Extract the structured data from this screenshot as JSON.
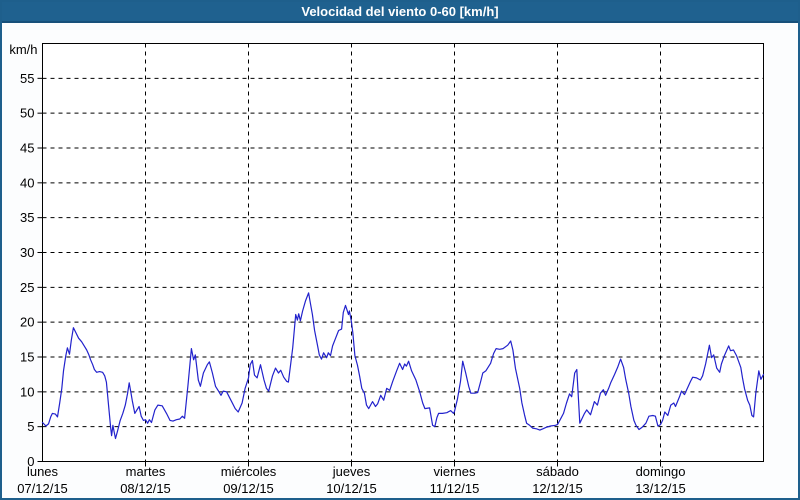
{
  "header": {
    "title": "Velocidad del viento 0-60 [km/h]"
  },
  "colors": {
    "titlebar_bg": "#1F618F",
    "titlebar_border": "#17507A",
    "page_border": "#1E5F8C",
    "page_bg": "#FCFDFE",
    "plot_bg": "#FFFFFF",
    "frame": "#000000",
    "grid": "#000000",
    "text": "#000000",
    "line": "#2222CC"
  },
  "chart_data": {
    "type": "line",
    "title": "Velocidad del viento 0-60 [km/h]",
    "ylabel": "km/h",
    "xlabel": "",
    "grid": {
      "style": "dashed",
      "color": "#000000"
    },
    "legend": "none",
    "y_axis": {
      "min": 0,
      "max": 60,
      "tick_step": 5,
      "tick_label_values": [
        0,
        5,
        10,
        15,
        20,
        25,
        30,
        35,
        40,
        45,
        50,
        55
      ],
      "gridline_values": [
        5,
        10,
        15,
        20,
        25,
        30,
        35,
        40,
        45,
        50,
        55
      ],
      "unit_label": "km/h"
    },
    "x_axis": {
      "total_hours": 168,
      "day_span_hours": 24,
      "day_boundary_hours": [
        24,
        48,
        72,
        96,
        120,
        144
      ],
      "days": [
        {
          "name": "lunes",
          "date": "07/12/15"
        },
        {
          "name": "martes",
          "date": "08/12/15"
        },
        {
          "name": "miércoles",
          "date": "09/12/15"
        },
        {
          "name": "jueves",
          "date": "10/12/15"
        },
        {
          "name": "viernes",
          "date": "11/12/15"
        },
        {
          "name": "sábado",
          "date": "12/12/15"
        },
        {
          "name": "domingo",
          "date": "13/12/15"
        }
      ]
    },
    "series": [
      {
        "name": "Velocidad del viento",
        "color": "#2222CC",
        "units": "km/h",
        "points": [
          [
            0,
            5.6
          ],
          [
            0.8,
            5.1
          ],
          [
            1.4,
            5.4
          ],
          [
            1.9,
            6.4
          ],
          [
            2.3,
            6.9
          ],
          [
            3,
            6.8
          ],
          [
            3.5,
            6.4
          ],
          [
            4,
            8.4
          ],
          [
            4.5,
            10.5
          ],
          [
            4.9,
            13
          ],
          [
            5.4,
            15.1
          ],
          [
            5.8,
            16.3
          ],
          [
            6.3,
            15.4
          ],
          [
            6.7,
            17.4
          ],
          [
            7.2,
            19.2
          ],
          [
            7.7,
            18.6
          ],
          [
            8.4,
            17.7
          ],
          [
            9.1,
            17.2
          ],
          [
            9.8,
            16.5
          ],
          [
            10.3,
            16
          ],
          [
            10.8,
            15.3
          ],
          [
            11.2,
            14.6
          ],
          [
            11.7,
            13.9
          ],
          [
            12.1,
            13.2
          ],
          [
            12.6,
            12.8
          ],
          [
            13.3,
            12.9
          ],
          [
            14,
            12.8
          ],
          [
            14.5,
            12.3
          ],
          [
            14.9,
            11.4
          ],
          [
            15.4,
            8
          ],
          [
            15.9,
            4.8
          ],
          [
            16.1,
            3.7
          ],
          [
            16.4,
            5.2
          ],
          [
            16.7,
            4.2
          ],
          [
            17,
            3.3
          ],
          [
            17.5,
            4.4
          ],
          [
            18.1,
            5.9
          ],
          [
            18.7,
            6.9
          ],
          [
            19.3,
            8.1
          ],
          [
            19.8,
            9.7
          ],
          [
            20.2,
            11.3
          ],
          [
            20.6,
            9.9
          ],
          [
            20.9,
            8.8
          ],
          [
            21.5,
            6.9
          ],
          [
            22.1,
            7.5
          ],
          [
            22.5,
            7.9
          ],
          [
            23,
            6.5
          ],
          [
            23.5,
            5.9
          ],
          [
            24,
            6
          ],
          [
            24.5,
            5.5
          ],
          [
            24.9,
            6
          ],
          [
            25.4,
            5.6
          ],
          [
            26.2,
            7.4
          ],
          [
            26.9,
            8.1
          ],
          [
            27.9,
            8
          ],
          [
            28.9,
            6.9
          ],
          [
            29.7,
            5.9
          ],
          [
            30.4,
            5.8
          ],
          [
            31.2,
            6
          ],
          [
            32,
            6.1
          ],
          [
            32.6,
            6.5
          ],
          [
            33.1,
            6.2
          ],
          [
            33.9,
            11
          ],
          [
            34.7,
            16.2
          ],
          [
            35.2,
            14.6
          ],
          [
            35.6,
            15.3
          ],
          [
            36.3,
            11.7
          ],
          [
            36.8,
            10.8
          ],
          [
            37.5,
            12.7
          ],
          [
            38.4,
            13.9
          ],
          [
            38.9,
            14.3
          ],
          [
            39.6,
            12.7
          ],
          [
            40.3,
            10.8
          ],
          [
            41,
            10.1
          ],
          [
            41.6,
            9.5
          ],
          [
            42.1,
            10.1
          ],
          [
            42.9,
            10
          ],
          [
            43.9,
            8.8
          ],
          [
            44.9,
            7.6
          ],
          [
            45.6,
            7.1
          ],
          [
            46.5,
            8.4
          ],
          [
            47.2,
            10.5
          ],
          [
            48,
            12
          ],
          [
            48.4,
            13.9
          ],
          [
            48.9,
            14.5
          ],
          [
            49.4,
            12.4
          ],
          [
            50,
            12
          ],
          [
            50.8,
            13.9
          ],
          [
            51.6,
            11.7
          ],
          [
            52.2,
            10.5
          ],
          [
            52.7,
            10.1
          ],
          [
            53.6,
            12.3
          ],
          [
            54.3,
            13.4
          ],
          [
            55,
            12.7
          ],
          [
            55.5,
            13.1
          ],
          [
            56.2,
            12.1
          ],
          [
            56.9,
            11.5
          ],
          [
            57.3,
            11.4
          ],
          [
            57.8,
            13.9
          ],
          [
            58.3,
            16.3
          ],
          [
            59,
            21.1
          ],
          [
            59.4,
            20.3
          ],
          [
            59.7,
            21.2
          ],
          [
            60.1,
            20.2
          ],
          [
            60.6,
            21.6
          ],
          [
            61.3,
            23.1
          ],
          [
            62,
            24.2
          ],
          [
            62.4,
            22.8
          ],
          [
            62.9,
            21.1
          ],
          [
            63.4,
            18.8
          ],
          [
            64.1,
            16.6
          ],
          [
            64.5,
            15.3
          ],
          [
            65,
            14.7
          ],
          [
            65.5,
            15.6
          ],
          [
            66.2,
            14.9
          ],
          [
            66.6,
            15.6
          ],
          [
            67.1,
            15.2
          ],
          [
            67.6,
            16.6
          ],
          [
            68.3,
            17.7
          ],
          [
            69,
            18.8
          ],
          [
            69.7,
            19
          ],
          [
            70.1,
            21.4
          ],
          [
            70.6,
            22.4
          ],
          [
            71.3,
            21.1
          ],
          [
            71.5,
            21.6
          ],
          [
            72,
            20
          ],
          [
            72.3,
            18.5
          ],
          [
            72.8,
            15.2
          ],
          [
            73.4,
            13.8
          ],
          [
            73.9,
            12.2
          ],
          [
            74.4,
            10.5
          ],
          [
            75,
            9.8
          ],
          [
            75.5,
            8.1
          ],
          [
            76,
            7.6
          ],
          [
            76.9,
            8.6
          ],
          [
            77.6,
            7.9
          ],
          [
            78.1,
            8.3
          ],
          [
            78.8,
            9.5
          ],
          [
            79.5,
            8.8
          ],
          [
            80.2,
            10.5
          ],
          [
            80.9,
            10.2
          ],
          [
            81.6,
            11.5
          ],
          [
            82.5,
            13
          ],
          [
            83.2,
            14.1
          ],
          [
            83.9,
            13.2
          ],
          [
            84.4,
            14
          ],
          [
            84.8,
            13.7
          ],
          [
            85.3,
            14.4
          ],
          [
            86,
            13
          ],
          [
            87,
            11.7
          ],
          [
            87.9,
            10
          ],
          [
            88.6,
            8.4
          ],
          [
            89.1,
            7.6
          ],
          [
            90.2,
            7.7
          ],
          [
            90.9,
            5.2
          ],
          [
            91.4,
            5
          ],
          [
            91.9,
            6.3
          ],
          [
            92.3,
            6.9
          ],
          [
            93.2,
            6.9
          ],
          [
            94.2,
            7
          ],
          [
            95.1,
            7.3
          ],
          [
            95.8,
            6.9
          ],
          [
            96,
            7.2
          ],
          [
            96.7,
            9
          ],
          [
            97.4,
            11.5
          ],
          [
            97.9,
            14.4
          ],
          [
            98.6,
            12.7
          ],
          [
            99.3,
            10.8
          ],
          [
            99.8,
            9.8
          ],
          [
            100.7,
            9.8
          ],
          [
            101.4,
            9.9
          ],
          [
            102.1,
            11.5
          ],
          [
            102.6,
            12.7
          ],
          [
            103.3,
            13
          ],
          [
            104.4,
            14.1
          ],
          [
            105.1,
            15.5
          ],
          [
            105.7,
            16.2
          ],
          [
            106.5,
            16.1
          ],
          [
            107.3,
            16.2
          ],
          [
            108.4,
            16.7
          ],
          [
            109.1,
            17.3
          ],
          [
            109.6,
            16
          ],
          [
            110.2,
            13.4
          ],
          [
            111.2,
            10.5
          ],
          [
            111.7,
            8.4
          ],
          [
            112.3,
            6.7
          ],
          [
            112.8,
            5.5
          ],
          [
            113.5,
            5.2
          ],
          [
            114.2,
            4.8
          ],
          [
            115.1,
            4.7
          ],
          [
            115.9,
            4.5
          ],
          [
            116.6,
            4.7
          ],
          [
            117.3,
            4.9
          ],
          [
            118.4,
            5.1
          ],
          [
            119.5,
            5.2
          ],
          [
            120,
            5.3
          ],
          [
            120.8,
            6.2
          ],
          [
            121.4,
            6.9
          ],
          [
            122.1,
            8.4
          ],
          [
            122.8,
            9.7
          ],
          [
            123.3,
            9.3
          ],
          [
            124,
            12.7
          ],
          [
            124.5,
            13.2
          ],
          [
            125.2,
            5.5
          ],
          [
            126.3,
            6.9
          ],
          [
            126.8,
            7.4
          ],
          [
            127.7,
            6.7
          ],
          [
            128.6,
            8.6
          ],
          [
            129.3,
            8.1
          ],
          [
            130,
            9.8
          ],
          [
            130.7,
            10.3
          ],
          [
            131.2,
            9.5
          ],
          [
            131.9,
            10.5
          ],
          [
            132.4,
            11.3
          ],
          [
            133.3,
            12.5
          ],
          [
            134,
            13.5
          ],
          [
            134.7,
            14.7
          ],
          [
            135.4,
            13.5
          ],
          [
            135.9,
            11.8
          ],
          [
            136.6,
            9.8
          ],
          [
            137.1,
            7.9
          ],
          [
            137.8,
            5.9
          ],
          [
            138.3,
            5.2
          ],
          [
            139,
            4.6
          ],
          [
            139.7,
            4.9
          ],
          [
            140.6,
            5.5
          ],
          [
            141.3,
            6.5
          ],
          [
            142.2,
            6.6
          ],
          [
            142.8,
            6.5
          ],
          [
            143.4,
            5.1
          ],
          [
            144,
            5.3
          ],
          [
            144.5,
            5.9
          ],
          [
            145,
            7.1
          ],
          [
            145.7,
            6.6
          ],
          [
            146.4,
            8.1
          ],
          [
            147.1,
            8.4
          ],
          [
            147.5,
            7.9
          ],
          [
            148.5,
            9.4
          ],
          [
            148.9,
            10.1
          ],
          [
            149.6,
            9.6
          ],
          [
            150.1,
            10.3
          ],
          [
            151,
            11.5
          ],
          [
            151.5,
            12.1
          ],
          [
            152.4,
            12
          ],
          [
            153.3,
            11.7
          ],
          [
            153.8,
            12.3
          ],
          [
            154.5,
            14
          ],
          [
            155.4,
            16.7
          ],
          [
            155.9,
            14.9
          ],
          [
            156.4,
            15.3
          ],
          [
            157.1,
            13.4
          ],
          [
            157.8,
            12.8
          ],
          [
            158.2,
            14
          ],
          [
            158.9,
            15.2
          ],
          [
            159.9,
            16.6
          ],
          [
            160.3,
            15.9
          ],
          [
            161,
            16
          ],
          [
            161.7,
            15.2
          ],
          [
            162.7,
            13.5
          ],
          [
            163.1,
            12
          ],
          [
            163.6,
            10.4
          ],
          [
            164.3,
            8.8
          ],
          [
            164.8,
            8.1
          ],
          [
            165.3,
            6.6
          ],
          [
            165.7,
            6.4
          ],
          [
            166.2,
            9.8
          ],
          [
            166.9,
            13
          ],
          [
            167.4,
            11.8
          ],
          [
            168,
            12.5
          ]
        ]
      }
    ]
  }
}
